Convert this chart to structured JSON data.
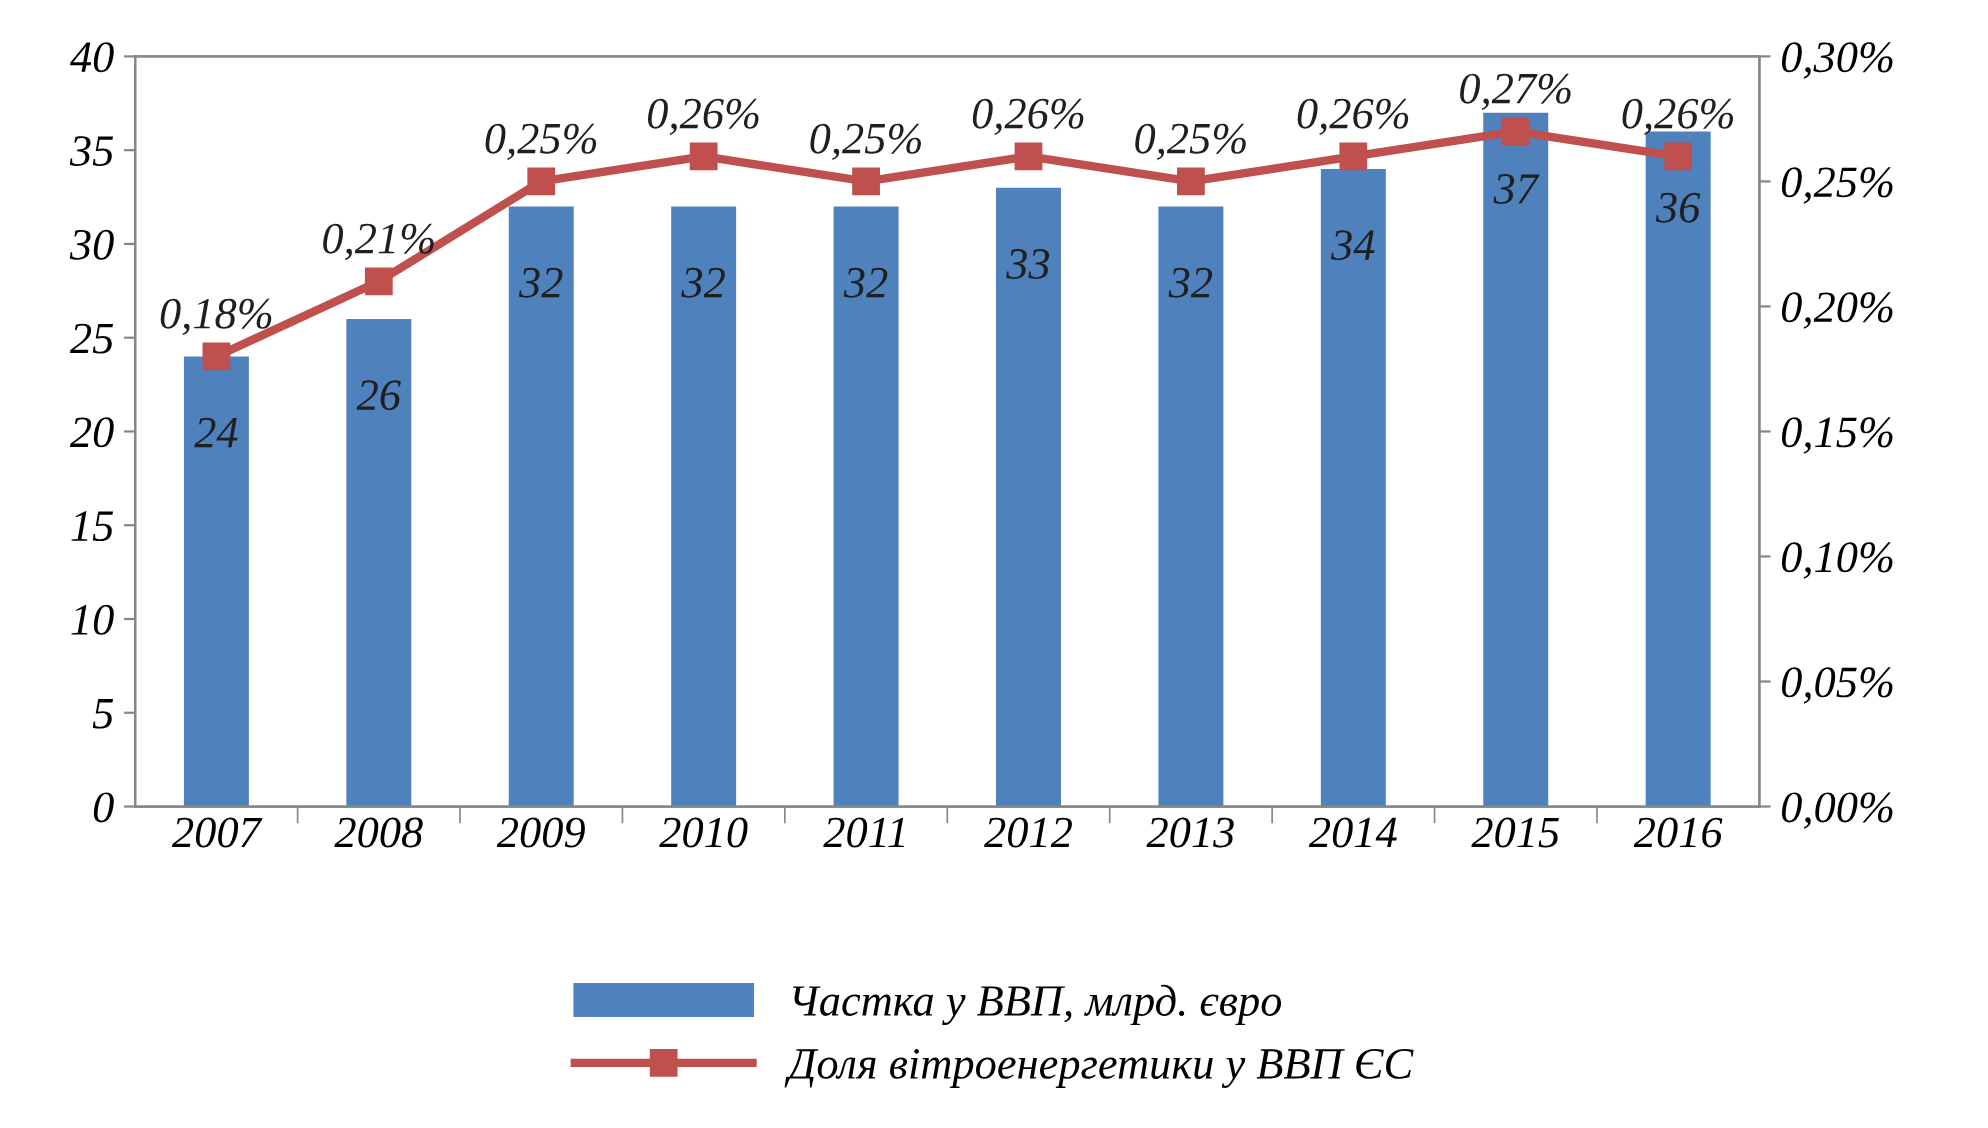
{
  "chart_data": {
    "type": "bar",
    "categories": [
      "2007",
      "2008",
      "2009",
      "2010",
      "2011",
      "2012",
      "2013",
      "2014",
      "2015",
      "2016"
    ],
    "series": [
      {
        "name": "Частка у ВВП, млрд. євро",
        "color": "#4f81bd",
        "values": [
          24,
          26,
          32,
          32,
          32,
          33,
          32,
          34,
          37,
          36
        ],
        "value_labels": [
          "24",
          "26",
          "32",
          "32",
          "32",
          "33",
          "32",
          "34",
          "37",
          "36"
        ]
      },
      {
        "name": "Доля вітроенергетики у ВВП ЄС",
        "type": "line",
        "axis": "y2",
        "color": "#c0504d",
        "marker": "square",
        "values": [
          0.18,
          0.21,
          0.25,
          0.26,
          0.25,
          0.26,
          0.25,
          0.26,
          0.27,
          0.26
        ],
        "value_labels": [
          "0,18%",
          "0,21%",
          "0,25%",
          "0,26%",
          "0,25%",
          "0,26%",
          "0,25%",
          "0,26%",
          "0,27%",
          "0,26%"
        ]
      }
    ],
    "ylim": [
      0,
      40
    ],
    "yticks": [
      0,
      5,
      10,
      15,
      20,
      25,
      30,
      35,
      40
    ],
    "y2lim": [
      0,
      0.3
    ],
    "y2ticks": [
      {
        "value": 0,
        "label": "0,00%"
      },
      {
        "value": 0.05,
        "label": "0,05%"
      },
      {
        "value": 0.1,
        "label": "0,10%"
      },
      {
        "value": 0.15,
        "label": "0,15%"
      },
      {
        "value": 0.2,
        "label": "0,20%"
      },
      {
        "value": 0.25,
        "label": "0,25%"
      },
      {
        "value": 0.3,
        "label": "0,30%"
      }
    ],
    "grid": false,
    "legend": "bottom"
  }
}
